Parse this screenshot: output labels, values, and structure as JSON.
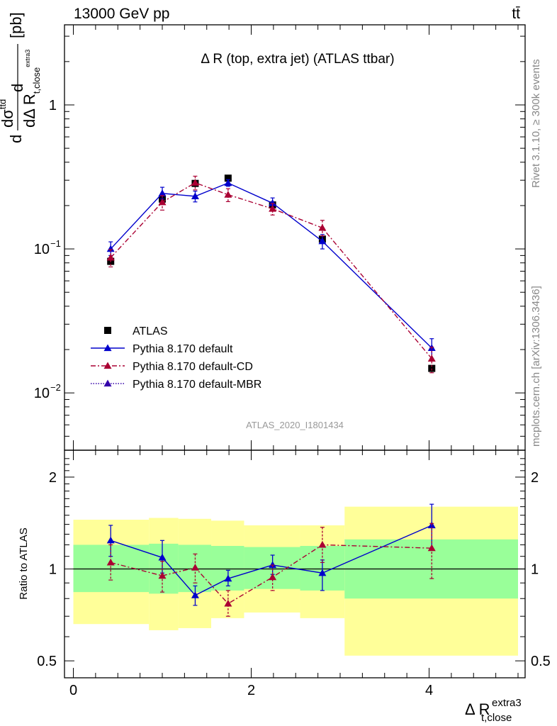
{
  "header": {
    "left": "13000 GeV pp",
    "right": "tt̄"
  },
  "side_labels": {
    "rivet": "Rivet 3.1.10, ≥ 300k events",
    "mcplots": "mcplots.cern.ch [arXiv:1306.3436]"
  },
  "chart_data": [
    {
      "type": "line",
      "panel": "main",
      "title": "Δ R (top, extra jet) (ATLAS ttbar)",
      "watermark": "ATLAS_2020_I1801434",
      "ylabel": {
        "prefix": "dσ",
        "sup": "ttd",
        "denom": "dΔ R",
        "sub": "t,close",
        "subsup": "extra3",
        "unit": "[pb]"
      },
      "ylim": [
        0.004,
        3.6
      ],
      "yscale": "log",
      "xlim": [
        -0.1,
        5.1
      ],
      "yticks": [
        {
          "value": 0.01,
          "base": "10",
          "exp": "−2"
        },
        {
          "value": 0.1,
          "base": "10",
          "exp": "−1"
        },
        {
          "value": 1,
          "base": "1",
          "exp": ""
        }
      ],
      "legend": {
        "position": "lower-left",
        "entries": [
          {
            "label": "ATLAS",
            "color": "#000000",
            "marker": "square",
            "line": "none"
          },
          {
            "label": "Pythia 8.170 default",
            "color": "#0000cc",
            "marker": "triangle",
            "line": "solid"
          },
          {
            "label": "Pythia 8.170 default-CD",
            "color": "#aa0033",
            "marker": "triangle",
            "line": "dashdot"
          },
          {
            "label": "Pythia 8.170 default-MBR",
            "color": "#3300aa",
            "marker": "triangle",
            "line": "dotted"
          }
        ]
      },
      "series": [
        {
          "name": "ATLAS",
          "color": "#000000",
          "points": [
            {
              "x": 0.42,
              "y": 0.082,
              "lo": 0.078,
              "hi": 0.086
            },
            {
              "x": 1.0,
              "y": 0.222,
              "lo": 0.214,
              "hi": 0.23
            },
            {
              "x": 1.37,
              "y": 0.285,
              "lo": 0.276,
              "hi": 0.294
            },
            {
              "x": 1.74,
              "y": 0.31,
              "lo": 0.3,
              "hi": 0.32
            },
            {
              "x": 2.24,
              "y": 0.202,
              "lo": 0.196,
              "hi": 0.208
            },
            {
              "x": 2.8,
              "y": 0.117,
              "lo": 0.113,
              "hi": 0.121
            },
            {
              "x": 4.03,
              "y": 0.0148,
              "lo": 0.0142,
              "hi": 0.0154
            }
          ]
        },
        {
          "name": "Pythia 8.170 default",
          "color": "#0000cc",
          "points": [
            {
              "x": 0.42,
              "y": 0.1,
              "lo": 0.09,
              "hi": 0.112
            },
            {
              "x": 1.0,
              "y": 0.243,
              "lo": 0.222,
              "hi": 0.268
            },
            {
              "x": 1.37,
              "y": 0.232,
              "lo": 0.212,
              "hi": 0.252
            },
            {
              "x": 1.74,
              "y": 0.287,
              "lo": 0.272,
              "hi": 0.303
            },
            {
              "x": 2.24,
              "y": 0.208,
              "lo": 0.192,
              "hi": 0.226
            },
            {
              "x": 2.8,
              "y": 0.113,
              "lo": 0.1,
              "hi": 0.126
            },
            {
              "x": 4.03,
              "y": 0.0205,
              "lo": 0.0172,
              "hi": 0.0238
            }
          ]
        },
        {
          "name": "Pythia 8.170 default-CD",
          "color": "#aa0033",
          "points": [
            {
              "x": 0.42,
              "y": 0.087,
              "lo": 0.075,
              "hi": 0.099
            },
            {
              "x": 1.0,
              "y": 0.211,
              "lo": 0.186,
              "hi": 0.235
            },
            {
              "x": 1.37,
              "y": 0.288,
              "lo": 0.257,
              "hi": 0.32
            },
            {
              "x": 1.74,
              "y": 0.238,
              "lo": 0.213,
              "hi": 0.262
            },
            {
              "x": 2.24,
              "y": 0.19,
              "lo": 0.172,
              "hi": 0.207
            },
            {
              "x": 2.8,
              "y": 0.14,
              "lo": 0.123,
              "hi": 0.158
            },
            {
              "x": 4.03,
              "y": 0.0173,
              "lo": 0.0138,
              "hi": 0.0208
            }
          ]
        }
      ]
    },
    {
      "type": "line",
      "panel": "ratio",
      "ylabel": "Ratio to ATLAS",
      "xlabel": {
        "main": "Δ R",
        "sub": "t,close",
        "sup": "extra3"
      },
      "yscale": "log",
      "ylim": [
        0.44,
        2.45
      ],
      "xlim": [
        -0.1,
        5.1
      ],
      "xticks": [
        0,
        2,
        4
      ],
      "yticks": [
        0.5,
        1,
        2
      ],
      "reference": 1,
      "bands": [
        {
          "x0": 0.0,
          "x1": 0.85,
          "inner": [
            0.84,
            1.2
          ],
          "outer": [
            0.66,
            1.45
          ]
        },
        {
          "x0": 0.85,
          "x1": 1.18,
          "inner": [
            0.83,
            1.21
          ],
          "outer": [
            0.63,
            1.47
          ]
        },
        {
          "x0": 1.18,
          "x1": 1.55,
          "inner": [
            0.84,
            1.2
          ],
          "outer": [
            0.64,
            1.46
          ]
        },
        {
          "x0": 1.55,
          "x1": 1.92,
          "inner": [
            0.85,
            1.19
          ],
          "outer": [
            0.69,
            1.44
          ]
        },
        {
          "x0": 1.92,
          "x1": 2.55,
          "inner": [
            0.86,
            1.18
          ],
          "outer": [
            0.72,
            1.39
          ]
        },
        {
          "x0": 2.55,
          "x1": 3.05,
          "inner": [
            0.85,
            1.19
          ],
          "outer": [
            0.69,
            1.39
          ]
        },
        {
          "x0": 3.05,
          "x1": 5.0,
          "inner": [
            0.8,
            1.25
          ],
          "outer": [
            0.52,
            1.6
          ]
        }
      ],
      "band_colors": {
        "inner": "#99ff99",
        "outer": "#ffff99"
      },
      "series": [
        {
          "name": "Pythia 8.170 default",
          "color": "#0000cc",
          "points": [
            {
              "x": 0.42,
              "y": 1.24,
              "lo": 1.1,
              "hi": 1.39
            },
            {
              "x": 1.0,
              "y": 1.09,
              "lo": 0.97,
              "hi": 1.24
            },
            {
              "x": 1.37,
              "y": 0.82,
              "lo": 0.76,
              "hi": 0.88
            },
            {
              "x": 1.74,
              "y": 0.93,
              "lo": 0.88,
              "hi": 0.99
            },
            {
              "x": 2.24,
              "y": 1.03,
              "lo": 0.96,
              "hi": 1.11
            },
            {
              "x": 2.8,
              "y": 0.97,
              "lo": 0.85,
              "hi": 1.07
            },
            {
              "x": 4.03,
              "y": 1.39,
              "lo": 1.16,
              "hi": 1.63
            }
          ]
        },
        {
          "name": "Pythia 8.170 default-CD",
          "color": "#aa0033",
          "points": [
            {
              "x": 0.42,
              "y": 1.05,
              "lo": 0.92,
              "hi": 1.2
            },
            {
              "x": 1.0,
              "y": 0.95,
              "lo": 0.84,
              "hi": 1.06
            },
            {
              "x": 1.37,
              "y": 1.01,
              "lo": 0.9,
              "hi": 1.12
            },
            {
              "x": 1.74,
              "y": 0.77,
              "lo": 0.7,
              "hi": 0.85
            },
            {
              "x": 2.24,
              "y": 0.94,
              "lo": 0.85,
              "hi": 1.03
            },
            {
              "x": 2.8,
              "y": 1.2,
              "lo": 1.05,
              "hi": 1.37
            },
            {
              "x": 4.03,
              "y": 1.17,
              "lo": 0.93,
              "hi": 1.41
            }
          ]
        }
      ]
    }
  ]
}
